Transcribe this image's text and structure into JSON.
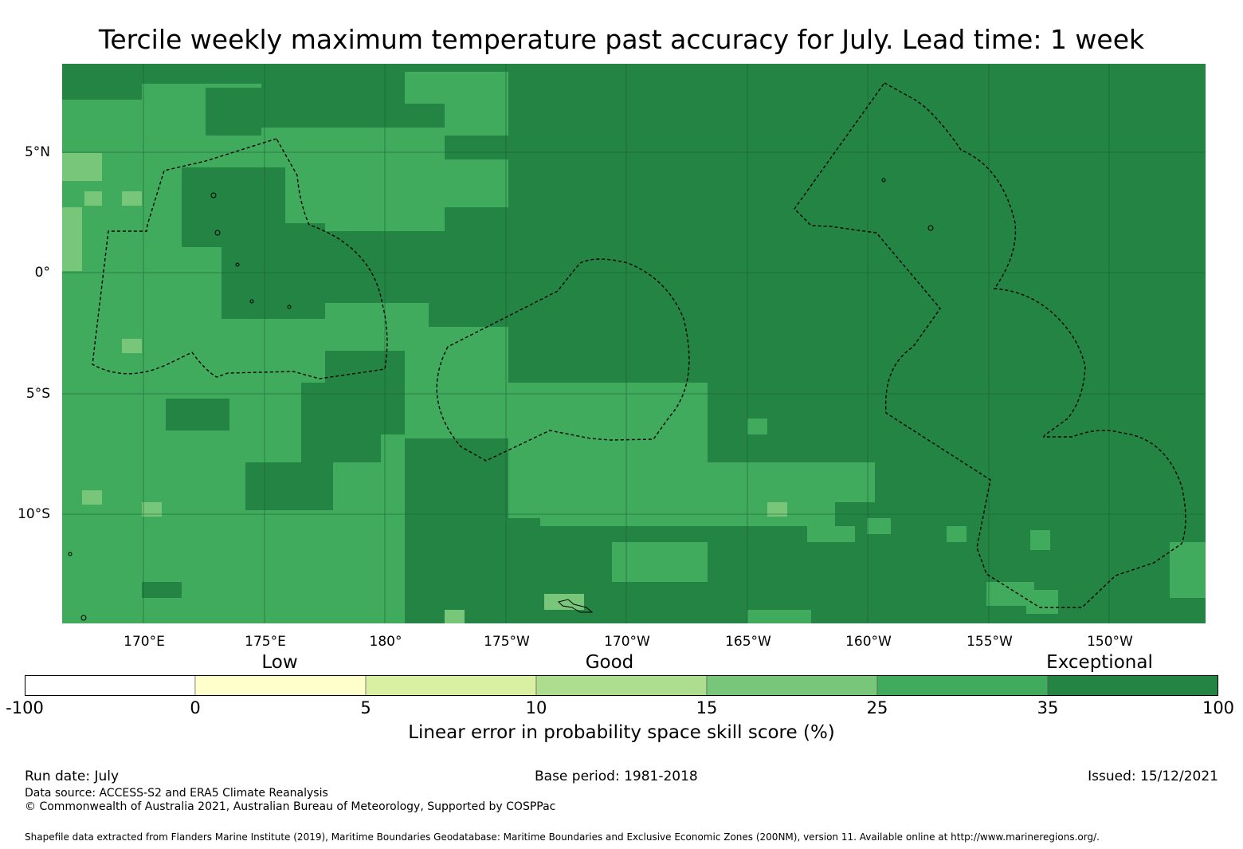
{
  "title": "Tercile weekly maximum temperature past accuracy for July. Lead time: 1 week",
  "map": {
    "lat_labels": [
      "5°N",
      "0°",
      "5°S",
      "10°S"
    ],
    "lon_labels": [
      "170°E",
      "175°E",
      "180°",
      "175°W",
      "170°W",
      "165°W",
      "160°W",
      "155°W",
      "150°W"
    ]
  },
  "legend": {
    "categories": [
      "Low",
      "Good",
      "Exceptional"
    ],
    "ticks": [
      "-100",
      "0",
      "5",
      "10",
      "15",
      "25",
      "35",
      "100"
    ],
    "colors": [
      "#ffffff",
      "#ffffcc",
      "#d9f0a3",
      "#addd8e",
      "#78c679",
      "#41ab5d",
      "#238443"
    ],
    "label": "Linear error in probability space skill score (%)"
  },
  "footer": {
    "run_date": "Run date: July",
    "base_period": "Base period: 1981-2018",
    "issued": "Issued: 15/12/2021",
    "data_source": "Data source: ACCESS-S2 and ERA5 Climate Reanalysis",
    "copyright": "© Commonwealth of Australia 2021, Australian Bureau of Meteorology, Supported by COSPPac",
    "shapefile": "Shapefile data extracted from Flanders Marine Institute (2019), Maritime Boundaries Geodatabase: Maritime Boundaries and Exclusive Economic Zones (200NM), version 11. Available online at http://www.marineregions.org/."
  }
}
